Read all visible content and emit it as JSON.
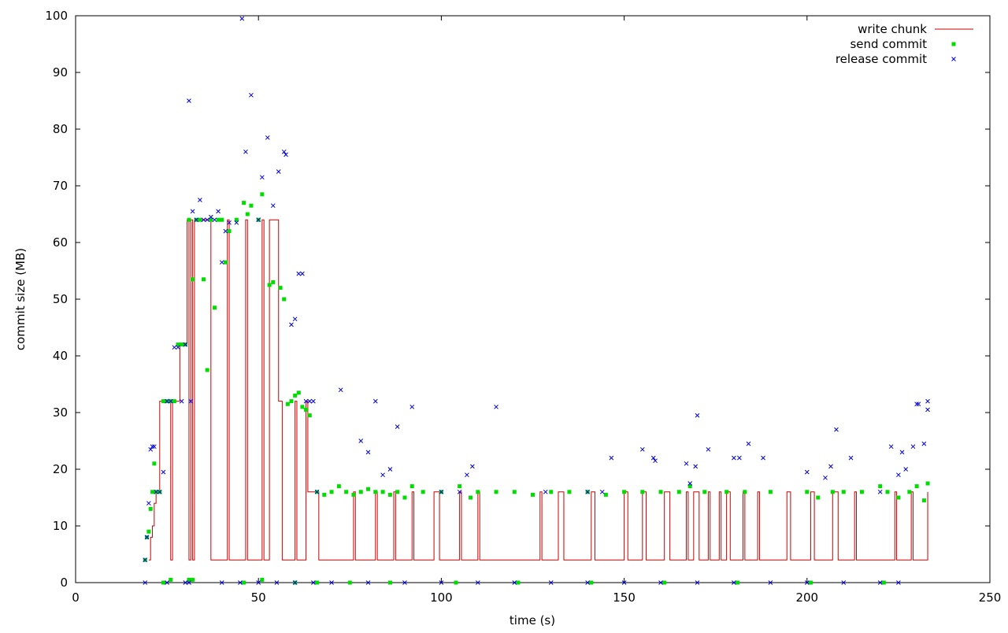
{
  "chart_data": {
    "type": "line",
    "xlabel": "time (s)",
    "ylabel": "commit size (MB)",
    "xlim": [
      0,
      250
    ],
    "ylim": [
      0,
      100
    ],
    "x_ticks": [
      "0",
      "50",
      "100",
      "150",
      "200",
      "250"
    ],
    "y_ticks": [
      "0",
      "10",
      "20",
      "30",
      "40",
      "50",
      "60",
      "70",
      "80",
      "90",
      "100"
    ],
    "grid": false,
    "legend_position": "top-right",
    "series": [
      {
        "name": "write chunk",
        "style": "step-line",
        "color": "#cc0000",
        "x": [
          20,
          20.5,
          21,
          21.5,
          22,
          22.5,
          23,
          24,
          25.5,
          26,
          26.5,
          28.5,
          30.5,
          31,
          31.5,
          32,
          32.5,
          36.5,
          37,
          41.5,
          42,
          46.5,
          47,
          51,
          51.5,
          53,
          55.5,
          56.5,
          60,
          60.5,
          63,
          63.5,
          66,
          66.5,
          76,
          76.5,
          82,
          82.5,
          87,
          87.5,
          92,
          92.5,
          98,
          99.5,
          105,
          105.5,
          110,
          110.5,
          127,
          127.5,
          132,
          133.5,
          141,
          142,
          150,
          151,
          155,
          156,
          161,
          162.5,
          167,
          167.5,
          169,
          170.5,
          173,
          173.5,
          176,
          176.5,
          178,
          179,
          182.5,
          183,
          186.5,
          187,
          194.5,
          195.5,
          201,
          202,
          207,
          208.5,
          213,
          213.5,
          224,
          224.5,
          228.5,
          229,
          233
        ],
        "y": [
          4,
          8,
          10,
          14,
          16,
          16,
          32,
          32,
          32,
          4,
          32,
          42,
          64,
          4,
          64,
          4,
          64,
          64,
          4,
          64,
          4,
          64,
          4,
          64,
          4,
          64,
          32,
          4,
          32,
          4,
          32,
          16,
          16,
          4,
          16,
          4,
          16,
          4,
          16,
          4,
          16,
          4,
          16,
          4,
          16,
          4,
          16,
          4,
          16,
          4,
          16,
          4,
          16,
          4,
          16,
          4,
          16,
          4,
          16,
          4,
          16,
          4,
          16,
          4,
          16,
          4,
          16,
          4,
          16,
          4,
          16,
          4,
          16,
          4,
          16,
          4,
          16,
          4,
          16,
          4,
          16,
          4,
          16,
          4,
          16,
          4,
          16
        ]
      },
      {
        "name": "send commit",
        "style": "points-square",
        "color": "#00dd00",
        "x": [
          19,
          19.5,
          20,
          20.5,
          21,
          21.5,
          22,
          23,
          24,
          25,
          26,
          27,
          28,
          29,
          30,
          31,
          32,
          33,
          34,
          35,
          36,
          37,
          38,
          39,
          40,
          41,
          42,
          44,
          46,
          47,
          48,
          50,
          51,
          53,
          54,
          56,
          57,
          58,
          59,
          60,
          61,
          62,
          63,
          64,
          66,
          68,
          70,
          72,
          74,
          76,
          78,
          80,
          82,
          84,
          86,
          88,
          90,
          92,
          95,
          100,
          105,
          108,
          110,
          115,
          120,
          125,
          130,
          135,
          140,
          145,
          150,
          155,
          160,
          165,
          168,
          172,
          178,
          183,
          190,
          200,
          203,
          207,
          210,
          215,
          220,
          222,
          225,
          228,
          230,
          232,
          233,
          24,
          26,
          31,
          32,
          46,
          51,
          60,
          66,
          75,
          86,
          104,
          121,
          141,
          161,
          181,
          201,
          221
        ],
        "y": [
          4,
          8,
          9,
          13,
          16,
          21,
          16,
          16,
          32,
          32,
          32,
          32,
          42,
          42,
          42,
          64,
          53.5,
          64,
          64,
          53.5,
          37.5,
          64,
          48.5,
          64,
          64,
          56.5,
          62,
          64,
          67,
          65,
          66.5,
          64,
          68.5,
          52.5,
          53,
          52,
          50,
          31.5,
          32,
          33,
          33.5,
          31,
          30.5,
          29.5,
          16,
          15.5,
          16,
          17,
          16,
          15.5,
          16,
          16.5,
          16,
          16,
          15.5,
          16,
          15,
          17,
          16,
          16,
          17,
          15,
          16,
          16,
          16,
          15.5,
          16,
          16,
          16,
          15.5,
          16,
          16,
          16,
          16,
          17,
          16,
          16,
          16,
          16,
          16,
          15,
          16,
          16,
          16,
          17,
          16,
          15,
          16,
          17,
          14.5,
          17.5,
          0,
          0.5,
          0.5,
          0.5,
          0,
          0.5,
          0,
          0,
          0,
          0,
          0,
          0,
          0,
          0,
          0,
          0,
          0
        ]
      },
      {
        "name": "release commit",
        "style": "points-x",
        "color": "#0000dd",
        "x": [
          19,
          19.5,
          20,
          20.5,
          21,
          21.5,
          22,
          23,
          24,
          25,
          26,
          27,
          28,
          29,
          30,
          31,
          31.5,
          32,
          33,
          34,
          35,
          36,
          37,
          38,
          39,
          40,
          41,
          42,
          44,
          45.5,
          46.5,
          48,
          50,
          51,
          52.5,
          54,
          55.5,
          57,
          57.5,
          59,
          60,
          61,
          62,
          63,
          64,
          65,
          66,
          72.5,
          78,
          80,
          82,
          84,
          86,
          88,
          92,
          100,
          105,
          107,
          108.5,
          115,
          128.5,
          140,
          144,
          146.5,
          155,
          158,
          158.5,
          167,
          168,
          169.5,
          170,
          173,
          180,
          181.5,
          184,
          188,
          200,
          205,
          206.5,
          208,
          212,
          220,
          223,
          225,
          226,
          227,
          229,
          230,
          230.5,
          232,
          233,
          233,
          19,
          25,
          30,
          31,
          40,
          45,
          50,
          55,
          60,
          65,
          70,
          80,
          90,
          100,
          110,
          120,
          130,
          140,
          150,
          160,
          170,
          180,
          190,
          200,
          210,
          220,
          225
        ],
        "y": [
          4,
          8,
          14,
          23.5,
          24,
          24,
          16,
          16,
          19.5,
          32,
          32,
          41.5,
          41.5,
          32,
          42,
          85,
          32,
          65.5,
          64,
          67.5,
          64,
          64,
          64.5,
          64,
          65.5,
          56.5,
          62,
          63.5,
          63.5,
          99.5,
          76,
          86,
          64,
          71.5,
          78.5,
          66.5,
          72.5,
          76,
          75.5,
          45.5,
          46.5,
          54.5,
          54.5,
          32,
          32,
          32,
          16,
          34,
          25,
          23,
          32,
          19,
          20,
          27.5,
          31,
          16,
          16,
          19,
          20.5,
          31,
          16,
          16,
          16,
          22,
          23.5,
          22,
          21.5,
          21,
          17.5,
          20.5,
          29.5,
          23.5,
          22,
          22,
          24.5,
          22,
          19.5,
          18.5,
          20.5,
          27,
          22,
          16,
          24,
          19,
          23,
          20,
          24,
          31.5,
          31.5,
          24.5,
          32,
          30.5,
          0,
          0,
          0,
          0,
          0,
          0,
          0,
          0,
          0,
          0,
          0,
          0,
          0,
          0,
          0,
          0,
          0,
          0,
          0,
          0,
          0,
          0,
          0,
          0,
          0,
          0,
          0
        ]
      }
    ]
  }
}
